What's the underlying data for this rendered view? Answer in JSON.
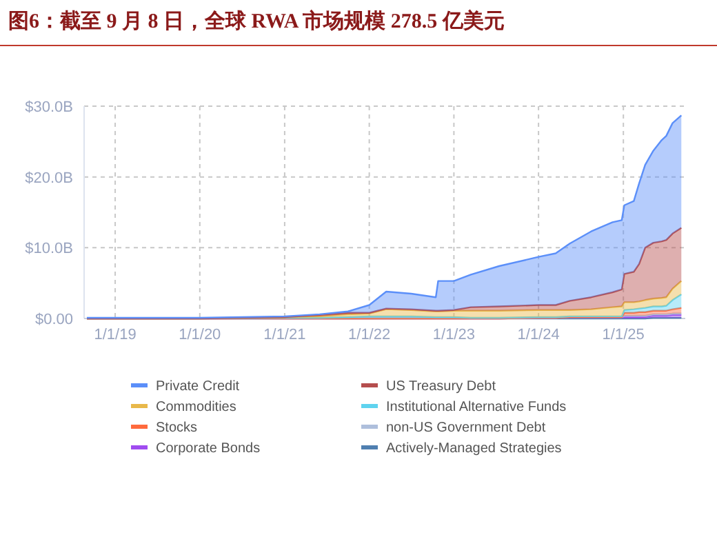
{
  "chart_data": {
    "type": "area",
    "title": "图6：截至 9 月 8 日，全球 RWA 市场规模 278.5 亿美元",
    "stacked": true,
    "x": [
      "2018-09-01",
      "2020-01-01",
      "2021-01-01",
      "2021-06-01",
      "2021-10-01",
      "2022-01-01",
      "2022-03-15",
      "2022-07-01",
      "2022-10-15",
      "2022-10-25",
      "2023-01-01",
      "2023-03-15",
      "2023-07-15",
      "2024-01-01",
      "2024-03-15",
      "2024-05-15",
      "2024-08-15",
      "2024-11-15",
      "2024-12-25",
      "2025-01-05",
      "2025-02-15",
      "2025-03-10",
      "2025-04-05",
      "2025-05-10",
      "2025-06-15",
      "2025-07-05",
      "2025-08-01",
      "2025-09-08"
    ],
    "series": [
      {
        "name": "Actively-Managed Strategies",
        "color": "#4f7fb0",
        "values": [
          0,
          0,
          0,
          0,
          0,
          0,
          0,
          0,
          0,
          0,
          0,
          0,
          0,
          0,
          0,
          0,
          0,
          0,
          0,
          0,
          0,
          0,
          0,
          0.1,
          0.1,
          0.1,
          0.1,
          0.1
        ]
      },
      {
        "name": "Corporate Bonds",
        "color": "#a04cf0",
        "values": [
          0,
          0,
          0,
          0,
          0,
          0,
          0,
          0,
          0,
          0,
          0,
          0,
          0,
          0.1,
          0.1,
          0.2,
          0.2,
          0.2,
          0.2,
          0.2,
          0.2,
          0.2,
          0.2,
          0.3,
          0.3,
          0.3,
          0.4,
          0.4
        ]
      },
      {
        "name": "non-US Government Debt",
        "color": "#aebfdc",
        "values": [
          0,
          0,
          0,
          0,
          0,
          0,
          0,
          0,
          0,
          0,
          0,
          0,
          0,
          0,
          0,
          0,
          0,
          0,
          0,
          0.2,
          0.2,
          0.2,
          0.2,
          0.2,
          0.2,
          0.2,
          0.2,
          0.2
        ]
      },
      {
        "name": "Stocks",
        "color": "#ff6a3d",
        "values": [
          0,
          0,
          0,
          0,
          0,
          0,
          0,
          0,
          0,
          0,
          0,
          0,
          0,
          0,
          0,
          0,
          0,
          0,
          0,
          0.4,
          0.4,
          0.5,
          0.5,
          0.5,
          0.5,
          0.5,
          0.6,
          0.8
        ]
      },
      {
        "name": "Institutional Alternative Funds",
        "color": "#5fd3ef",
        "values": [
          0,
          0,
          0.1,
          0.1,
          0.2,
          0.3,
          0.3,
          0.3,
          0.2,
          0.2,
          0.2,
          0.1,
          0.1,
          0.1,
          0.1,
          0.1,
          0.1,
          0.1,
          0.1,
          0.4,
          0.5,
          0.5,
          0.6,
          0.6,
          0.6,
          0.7,
          1.3,
          1.9
        ]
      },
      {
        "name": "Commodities",
        "color": "#e8b84a",
        "values": [
          0,
          0,
          0.1,
          0.2,
          0.4,
          0.4,
          1.0,
          0.9,
          0.8,
          0.8,
          0.9,
          1.0,
          1.0,
          1.0,
          1.0,
          0.9,
          1.0,
          1.3,
          1.4,
          1.1,
          1.0,
          1.0,
          1.1,
          1.1,
          1.2,
          1.2,
          1.6,
          1.9
        ]
      },
      {
        "name": "US Treasury Debt",
        "color": "#b54e4e",
        "values": [
          0,
          0,
          0,
          0.2,
          0.2,
          0.1,
          0.1,
          0.1,
          0.1,
          0.1,
          0.1,
          0.5,
          0.6,
          0.7,
          0.7,
          1.3,
          1.7,
          2.1,
          2.4,
          4.0,
          4.3,
          5.3,
          7.4,
          7.9,
          8.0,
          8.1,
          7.8,
          7.5
        ]
      },
      {
        "name": "Private Credit",
        "color": "#5b8ff9",
        "values": [
          0.1,
          0.1,
          0.1,
          0.1,
          0.2,
          1.1,
          2.4,
          2.2,
          1.9,
          4.2,
          4.1,
          4.6,
          5.7,
          6.8,
          7.3,
          8.1,
          9.3,
          9.9,
          9.8,
          9.7,
          10.0,
          11.4,
          11.7,
          13.0,
          14.3,
          14.7,
          15.6,
          15.9
        ]
      }
    ],
    "xlim": [
      "2018-08-20",
      "2025-09-25"
    ],
    "xticks": [
      {
        "value": "2019-01-01",
        "label": "1/1/19"
      },
      {
        "value": "2020-01-01",
        "label": "1/1/20"
      },
      {
        "value": "2021-01-01",
        "label": "1/1/21"
      },
      {
        "value": "2022-01-01",
        "label": "1/1/22"
      },
      {
        "value": "2023-01-01",
        "label": "1/1/23"
      },
      {
        "value": "2024-01-01",
        "label": "1/1/24"
      },
      {
        "value": "2025-01-01",
        "label": "1/1/25"
      }
    ],
    "ylim": [
      0,
      30
    ],
    "yticks": [
      {
        "value": 0,
        "label": "$0.00"
      },
      {
        "value": 10,
        "label": "$10.0B"
      },
      {
        "value": 20,
        "label": "$20.0B"
      },
      {
        "value": 30,
        "label": "$30.0B"
      }
    ],
    "grid": true,
    "legend": "bottom"
  }
}
